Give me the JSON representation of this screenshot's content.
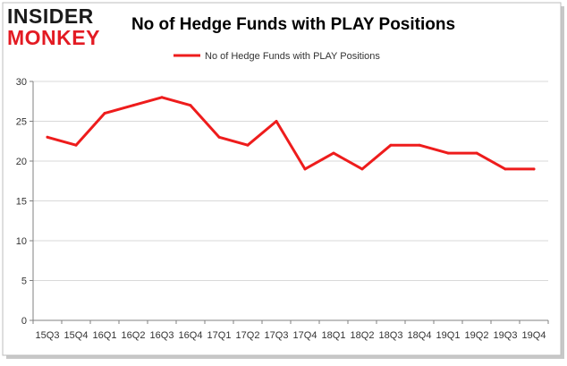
{
  "header": {
    "logo_line1": "INSIDER",
    "logo_line2": "MONKEY",
    "title": "No of Hedge Funds with PLAY Positions"
  },
  "colors": {
    "line": "#ee1c1c",
    "logo_dark": "#1a1a1a",
    "logo_red": "#e31b23",
    "grid": "#d9d9d9",
    "axis": "#808080",
    "frame_shadow": "#bfbfbf"
  },
  "chart_data": {
    "type": "line",
    "title": "No of Hedge Funds with PLAY Positions",
    "xlabel": "",
    "ylabel": "",
    "categories": [
      "15Q3",
      "15Q4",
      "16Q1",
      "16Q2",
      "16Q3",
      "16Q4",
      "17Q1",
      "17Q2",
      "17Q3",
      "17Q4",
      "18Q1",
      "18Q2",
      "18Q3",
      "18Q4",
      "19Q1",
      "19Q2",
      "19Q3",
      "19Q4"
    ],
    "series": [
      {
        "name": "No of Hedge Funds with PLAY Positions",
        "values": [
          23,
          22,
          26,
          27,
          28,
          27,
          23,
          22,
          25,
          19,
          21,
          19,
          22,
          22,
          21,
          21,
          19,
          19
        ]
      }
    ],
    "ylim": [
      0,
      30
    ],
    "yticks": [
      0,
      5,
      10,
      15,
      20,
      25,
      30
    ],
    "grid": true,
    "legend_position": "top-center"
  }
}
